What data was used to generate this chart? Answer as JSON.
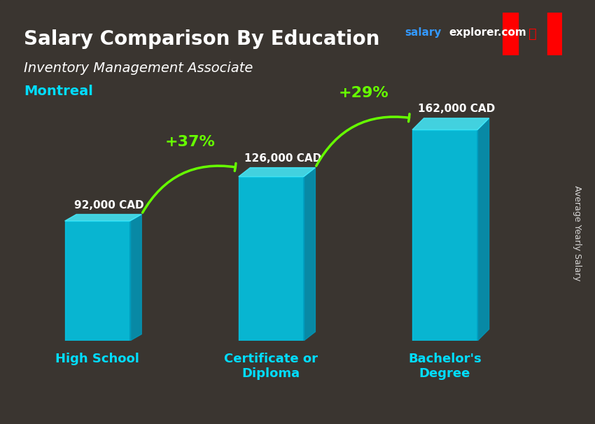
{
  "title": "Salary Comparison By Education",
  "subtitle": "Inventory Management Associate",
  "city": "Montreal",
  "watermark": "salaryexplorer.com",
  "ylabel": "Average Yearly Salary",
  "categories": [
    "High School",
    "Certificate or\nDiploma",
    "Bachelor's\nDegree"
  ],
  "values": [
    92000,
    126000,
    162000
  ],
  "value_labels": [
    "92,000 CAD",
    "126,000 CAD",
    "162,000 CAD"
  ],
  "pct_labels": [
    "+37%",
    "+29%"
  ],
  "bar_color": "#00BFFF",
  "bar_color_face": "#00D4FF",
  "bar_color_side": "#0099CC",
  "bar_color_top": "#33DDFF",
  "pct_color": "#66FF00",
  "title_color": "#FFFFFF",
  "subtitle_color": "#FFFFFF",
  "city_color": "#00DDFF",
  "label_color": "#FFFFFF",
  "tick_color": "#00DDFF",
  "ylabel_color": "#FFFFFF",
  "background_color": "#2a2a2a",
  "bar_width": 0.45,
  "ylim": [
    0,
    195000
  ]
}
